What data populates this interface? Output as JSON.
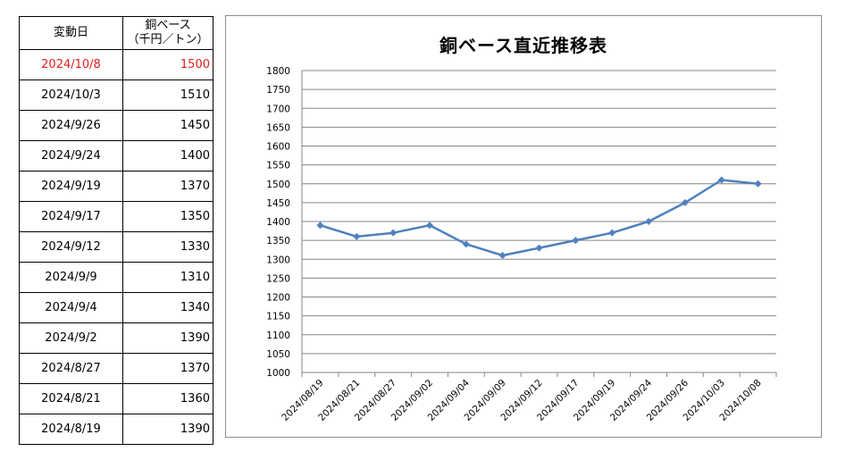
{
  "table": {
    "header": {
      "date": "変動日",
      "price_line1": "銅ベース",
      "price_line2": "（千円／トン）"
    },
    "rows": [
      {
        "date": "2024/10/8",
        "price": "1500",
        "highlight": true
      },
      {
        "date": "2024/10/3",
        "price": "1510"
      },
      {
        "date": "2024/9/26",
        "price": "1450"
      },
      {
        "date": "2024/9/24",
        "price": "1400"
      },
      {
        "date": "2024/9/19",
        "price": "1370"
      },
      {
        "date": "2024/9/17",
        "price": "1350"
      },
      {
        "date": "2024/9/12",
        "price": "1330"
      },
      {
        "date": "2024/9/9",
        "price": "1310"
      },
      {
        "date": "2024/9/4",
        "price": "1340"
      },
      {
        "date": "2024/9/2",
        "price": "1390"
      },
      {
        "date": "2024/8/27",
        "price": "1370"
      },
      {
        "date": "2024/8/21",
        "price": "1360"
      },
      {
        "date": "2024/8/19",
        "price": "1390"
      }
    ],
    "highlight_color": "#e0201e"
  },
  "chart_data": {
    "type": "line",
    "title": "銅ベース直近推移表",
    "categories": [
      "2024/08/19",
      "2024/08/21",
      "2024/08/27",
      "2024/09/02",
      "2024/09/04",
      "2024/09/09",
      "2024/09/12",
      "2024/09/17",
      "2024/09/19",
      "2024/09/24",
      "2024/09/26",
      "2024/10/03",
      "2024/10/08"
    ],
    "series": [
      {
        "values": [
          1390,
          1360,
          1370,
          1390,
          1340,
          1310,
          1330,
          1350,
          1370,
          1400,
          1450,
          1510,
          1500
        ],
        "color": "#4f81bd",
        "marker": "diamond"
      }
    ],
    "ylim": [
      1000,
      1800
    ],
    "ytick_step": 50,
    "grid": true,
    "legend": "none"
  }
}
